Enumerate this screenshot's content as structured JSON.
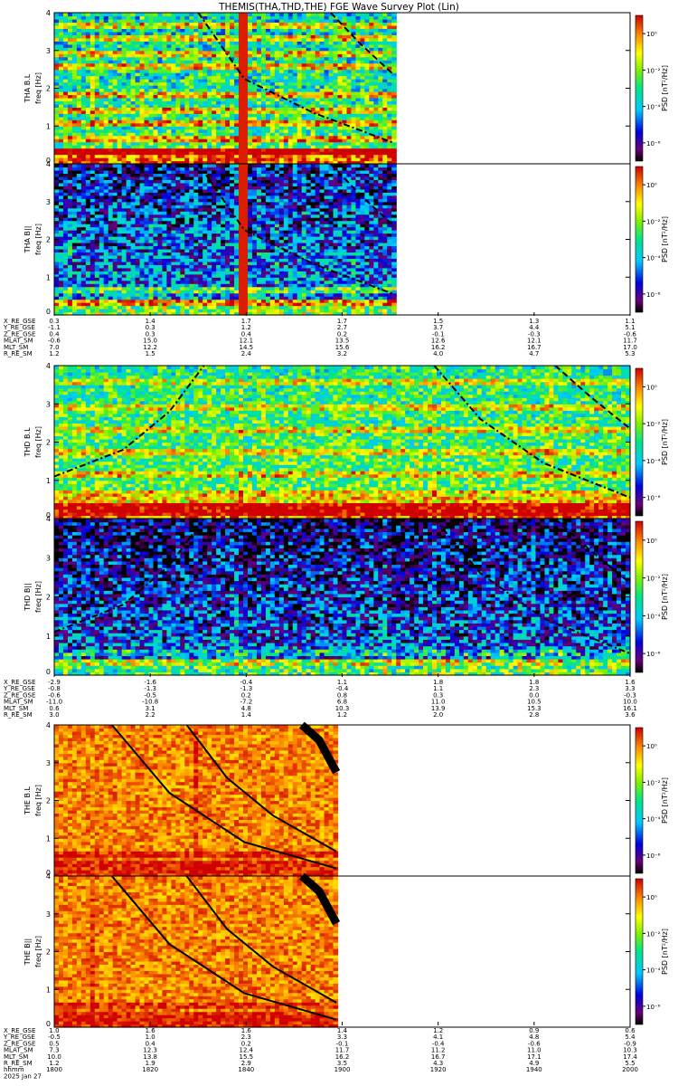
{
  "chart_data": {
    "type": "heatmap",
    "title": "THEMIS(THA,THD,THE) FGE Wave Survey Plot (Lin)",
    "colorbar": {
      "label": "PSD [nT²/Hz]",
      "tick_labels": [
        "10⁰",
        "10⁻²",
        "10⁻⁴",
        "10⁻⁶"
      ],
      "range_exp": [
        -7,
        1
      ]
    },
    "yaxis": {
      "ylabel": "freq [Hz]",
      "ticks": [
        "0",
        "1",
        "2",
        "3",
        "4"
      ],
      "ylim": [
        0,
        4
      ]
    },
    "panels": [
      {
        "group": "THA",
        "ylabel": "THA B.L",
        "base": 0.55,
        "amp": 0.35,
        "seed": 11,
        "lines": [
          0.3,
          0.7,
          1.05,
          1.45,
          1.8,
          2.55,
          2.9,
          3.3,
          3.7
        ],
        "line_strength": 0.35,
        "vline": 0.33,
        "data_end": 0.59,
        "noise": 0.22,
        "tilt": -0.12,
        "curves": [
          {
            "style": "dashdot",
            "pts": [
              [
                0.25,
                4.05
              ],
              [
                0.33,
                2.25
              ],
              [
                0.45,
                1.35
              ],
              [
                0.59,
                0.55
              ]
            ]
          },
          {
            "style": "dash",
            "pts": [
              [
                0.48,
                4.05
              ],
              [
                0.53,
                3.2
              ],
              [
                0.59,
                2.35
              ]
            ]
          }
        ]
      },
      {
        "group": "THA",
        "ylabel": "THA B||",
        "base": 0.35,
        "amp": 0.25,
        "seed": 23,
        "lines": [
          0.35,
          0.7
        ],
        "line_strength": 0.3,
        "vline": 0.33,
        "data_end": 0.59,
        "noise": 0.25,
        "tilt": -0.2,
        "curves": [
          {
            "style": "dashdot",
            "pts": [
              [
                0.25,
                4.05
              ],
              [
                0.33,
                2.25
              ],
              [
                0.45,
                1.35
              ],
              [
                0.59,
                0.55
              ]
            ]
          },
          {
            "style": "dash",
            "pts": [
              [
                0.48,
                4.05
              ],
              [
                0.53,
                3.2
              ],
              [
                0.59,
                2.35
              ]
            ]
          }
        ]
      },
      {
        "group": "THD",
        "ylabel": "THD B.L",
        "base": 0.58,
        "amp": 0.3,
        "seed": 37,
        "lines": [
          0.15,
          0.3,
          0.5,
          0.7,
          1.2,
          1.75,
          2.3,
          2.9,
          3.6
        ],
        "line_strength": 0.25,
        "vline": null,
        "data_end": 1.0,
        "noise": 0.2,
        "tilt": -0.08,
        "curves": [
          {
            "style": "dashdot",
            "pts": [
              [
                0.0,
                1.1
              ],
              [
                0.12,
                1.8
              ],
              [
                0.2,
                2.8
              ],
              [
                0.26,
                4.05
              ]
            ]
          },
          {
            "style": "dashdot",
            "pts": [
              [
                0.66,
                4.05
              ],
              [
                0.74,
                2.6
              ],
              [
                0.85,
                1.45
              ],
              [
                1.0,
                0.55
              ]
            ]
          },
          {
            "style": "dash",
            "pts": [
              [
                0.87,
                4.05
              ],
              [
                0.93,
                3.2
              ],
              [
                1.0,
                2.35
              ]
            ]
          }
        ]
      },
      {
        "group": "THD",
        "ylabel": "THD B||",
        "base": 0.3,
        "amp": 0.25,
        "seed": 53,
        "lines": [
          0.3,
          0.55
        ],
        "line_strength": 0.2,
        "vline": null,
        "data_end": 1.0,
        "noise": 0.25,
        "tilt": -0.22,
        "curves": [
          {
            "style": "dashdot",
            "pts": [
              [
                0.0,
                1.1
              ],
              [
                0.12,
                1.8
              ],
              [
                0.2,
                2.8
              ],
              [
                0.26,
                4.05
              ]
            ]
          },
          {
            "style": "dashdot",
            "pts": [
              [
                0.66,
                4.05
              ],
              [
                0.74,
                2.6
              ],
              [
                0.85,
                1.45
              ],
              [
                1.0,
                0.55
              ]
            ]
          },
          {
            "style": "dash",
            "pts": [
              [
                0.87,
                4.05
              ],
              [
                0.93,
                3.2
              ],
              [
                1.0,
                2.35
              ]
            ]
          }
        ]
      },
      {
        "group": "THE",
        "ylabel": "THE B.L",
        "base": 0.87,
        "amp": 0.1,
        "seed": 71,
        "lines": [
          0.55
        ],
        "line_strength": 0.12,
        "vline": null,
        "data_end": 0.49,
        "noise": 0.1,
        "tilt": 0.0,
        "curves": [
          {
            "style": "solid",
            "pts": [
              [
                0.1,
                4.05
              ],
              [
                0.2,
                2.2
              ],
              [
                0.33,
                0.9
              ],
              [
                0.49,
                0.2
              ]
            ]
          },
          {
            "style": "solid",
            "pts": [
              [
                0.23,
                4.05
              ],
              [
                0.3,
                2.6
              ],
              [
                0.38,
                1.6
              ],
              [
                0.49,
                0.65
              ]
            ]
          },
          {
            "style": "thick",
            "pts": [
              [
                0.43,
                4.05
              ],
              [
                0.46,
                3.6
              ],
              [
                0.49,
                2.75
              ]
            ]
          }
        ]
      },
      {
        "group": "THE",
        "ylabel": "THE B||",
        "base": 0.87,
        "amp": 0.1,
        "seed": 89,
        "lines": [
          0.6
        ],
        "line_strength": 0.12,
        "vline": null,
        "data_end": 0.49,
        "noise": 0.1,
        "tilt": 0.0,
        "curves": [
          {
            "style": "solid",
            "pts": [
              [
                0.1,
                4.05
              ],
              [
                0.2,
                2.2
              ],
              [
                0.33,
                0.9
              ],
              [
                0.49,
                0.2
              ]
            ]
          },
          {
            "style": "solid",
            "pts": [
              [
                0.23,
                4.05
              ],
              [
                0.3,
                2.6
              ],
              [
                0.38,
                1.6
              ],
              [
                0.49,
                0.65
              ]
            ]
          },
          {
            "style": "thick",
            "pts": [
              [
                0.43,
                4.05
              ],
              [
                0.46,
                3.6
              ],
              [
                0.49,
                2.75
              ]
            ]
          }
        ]
      }
    ],
    "ephemeris": [
      {
        "labels": [
          "X_RE_GSE",
          "Y_RE_GSE",
          "Z_RE_GSE",
          "MLAT_SM",
          "MLT_SM",
          "R_RE_SM"
        ],
        "columns": [
          [
            "0.3",
            "-1.1",
            "0.4",
            "-0.6",
            "7.0",
            "1.2"
          ],
          [
            "1.4",
            "0.3",
            "0.3",
            "15.0",
            "12.2",
            "1.5"
          ],
          [
            "1.7",
            "1.2",
            "0.4",
            "12.1",
            "14.5",
            "2.4"
          ],
          [
            "1.7",
            "2.7",
            "0.2",
            "13.5",
            "15.6",
            "3.2"
          ],
          [
            "1.5",
            "3.7",
            "-0.1",
            "12.6",
            "16.2",
            "4.0"
          ],
          [
            "1.3",
            "4.4",
            "-0.3",
            "12.1",
            "16.7",
            "4.7"
          ],
          [
            "1.1",
            "5.1",
            "-0.6",
            "11.7",
            "17.0",
            "5.3"
          ]
        ]
      },
      {
        "labels": [
          "X_RE_GSE",
          "Y_RE_GSE",
          "Z_RE_GSE",
          "MLAT_SM",
          "MLT_SM",
          "R_RE_SM"
        ],
        "columns": [
          [
            "-2.9",
            "-0.8",
            "-0.6",
            "-11.0",
            "0.6",
            "3.0"
          ],
          [
            "-1.6",
            "-1.3",
            "-0.5",
            "-10.8",
            "3.1",
            "2.2"
          ],
          [
            "-0.4",
            "-1.3",
            "0.2",
            "-7.2",
            "4.8",
            "1.4"
          ],
          [
            "1.1",
            "-0.4",
            "0.8",
            "6.8",
            "10.3",
            "1.2"
          ],
          [
            "1.8",
            "1.1",
            "0.3",
            "11.0",
            "13.9",
            "2.0"
          ],
          [
            "1.8",
            "2.3",
            "0.0",
            "10.5",
            "15.3",
            "2.8"
          ],
          [
            "1.6",
            "3.3",
            "-0.3",
            "10.0",
            "16.1",
            "3.6"
          ]
        ]
      },
      {
        "labels": [
          "X_RE_GSE",
          "Y_RE_GSE",
          "Z_RE_GSE",
          "MLAT_SM",
          "MLT_SM",
          "R_RE_SM",
          "hhmm",
          "2025 Jan 27"
        ],
        "columns": [
          [
            "1.0",
            "-0.5",
            "0.5",
            "7.3",
            "10.0",
            "1.2",
            "1800"
          ],
          [
            "1.6",
            "1.0",
            "0.4",
            "12.3",
            "13.8",
            "1.9",
            "1820"
          ],
          [
            "1.6",
            "2.3",
            "0.2",
            "12.4",
            "15.5",
            "2.9",
            "1840"
          ],
          [
            "1.4",
            "3.3",
            "-0.1",
            "11.7",
            "16.2",
            "3.5",
            "1900"
          ],
          [
            "1.2",
            "4.1",
            "-0.4",
            "11.2",
            "16.7",
            "4.3",
            "1920"
          ],
          [
            "0.9",
            "4.8",
            "-0.6",
            "11.0",
            "17.1",
            "4.9",
            "1940"
          ],
          [
            "0.6",
            "5.4",
            "-0.9",
            "10.3",
            "17.4",
            "5.5",
            "2000"
          ]
        ]
      }
    ]
  }
}
